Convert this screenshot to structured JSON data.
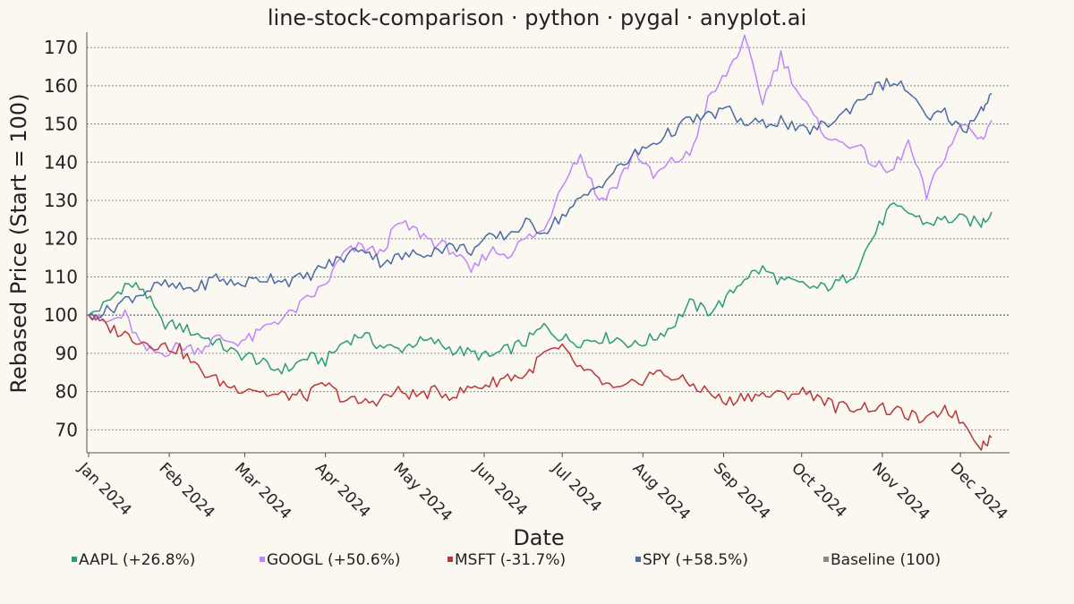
{
  "chart_data": {
    "type": "line",
    "title": "line-stock-comparison · python · pygal · anyplot.ai",
    "xlabel": "Date",
    "ylabel": "Rebased Price (Start = 100)",
    "ylim": [
      64,
      174
    ],
    "yticks": [
      70,
      80,
      90,
      100,
      110,
      120,
      130,
      140,
      150,
      160,
      170
    ],
    "x_ticks": [
      "Jan 2024",
      "Feb 2024",
      "Mar 2024",
      "Apr 2024",
      "May 2024",
      "Jun 2024",
      "Jul 2024",
      "Aug 2024",
      "Sep 2024",
      "Oct 2024",
      "Nov 2024",
      "Dec 2024"
    ],
    "grid": true,
    "legend_position": "bottom",
    "x_start": "2024-01-01",
    "x_end": "2024-12-13",
    "series": [
      {
        "name": "AAPL (+26.8%)",
        "color": "#2a9d78",
        "points": [
          [
            "2024-01-01",
            100
          ],
          [
            "2024-01-08",
            103
          ],
          [
            "2024-01-15",
            108
          ],
          [
            "2024-01-22",
            107
          ],
          [
            "2024-01-29",
            98
          ],
          [
            "2024-02-05",
            97
          ],
          [
            "2024-02-12",
            95
          ],
          [
            "2024-02-19",
            93
          ],
          [
            "2024-02-26",
            90
          ],
          [
            "2024-03-04",
            89
          ],
          [
            "2024-03-11",
            86
          ],
          [
            "2024-03-18",
            86
          ],
          [
            "2024-03-25",
            89
          ],
          [
            "2024-04-01",
            88
          ],
          [
            "2024-04-08",
            93
          ],
          [
            "2024-04-15",
            95
          ],
          [
            "2024-04-22",
            92
          ],
          [
            "2024-04-29",
            91
          ],
          [
            "2024-05-06",
            93
          ],
          [
            "2024-05-13",
            93
          ],
          [
            "2024-05-20",
            91
          ],
          [
            "2024-05-27",
            90
          ],
          [
            "2024-06-03",
            89
          ],
          [
            "2024-06-10",
            91
          ],
          [
            "2024-06-17",
            93
          ],
          [
            "2024-06-24",
            97
          ],
          [
            "2024-07-01",
            94
          ],
          [
            "2024-07-08",
            93
          ],
          [
            "2024-07-15",
            94
          ],
          [
            "2024-07-22",
            94
          ],
          [
            "2024-07-29",
            92
          ],
          [
            "2024-08-05",
            94
          ],
          [
            "2024-08-12",
            97
          ],
          [
            "2024-08-19",
            103
          ],
          [
            "2024-08-26",
            101
          ],
          [
            "2024-09-02",
            104
          ],
          [
            "2024-09-09",
            110
          ],
          [
            "2024-09-16",
            112
          ],
          [
            "2024-09-23",
            109
          ],
          [
            "2024-09-30",
            108
          ],
          [
            "2024-10-07",
            107
          ],
          [
            "2024-10-14",
            108
          ],
          [
            "2024-10-21",
            111
          ],
          [
            "2024-10-28",
            120
          ],
          [
            "2024-11-04",
            128
          ],
          [
            "2024-11-11",
            127
          ],
          [
            "2024-11-18",
            124
          ],
          [
            "2024-11-25",
            125
          ],
          [
            "2024-12-02",
            125
          ],
          [
            "2024-12-09",
            124
          ],
          [
            "2024-12-13",
            127
          ]
        ]
      },
      {
        "name": "GOOGL (+50.6%)",
        "color": "#c084fc",
        "points": [
          [
            "2024-01-01",
            100
          ],
          [
            "2024-01-08",
            98
          ],
          [
            "2024-01-15",
            100
          ],
          [
            "2024-01-22",
            91
          ],
          [
            "2024-01-29",
            90
          ],
          [
            "2024-02-05",
            92
          ],
          [
            "2024-02-12",
            91
          ],
          [
            "2024-02-19",
            94
          ],
          [
            "2024-02-26",
            93
          ],
          [
            "2024-03-04",
            94
          ],
          [
            "2024-03-11",
            98
          ],
          [
            "2024-03-18",
            100
          ],
          [
            "2024-03-25",
            104
          ],
          [
            "2024-04-01",
            108
          ],
          [
            "2024-04-08",
            116
          ],
          [
            "2024-04-15",
            118
          ],
          [
            "2024-04-22",
            116
          ],
          [
            "2024-04-29",
            124
          ],
          [
            "2024-05-06",
            122
          ],
          [
            "2024-05-13",
            119
          ],
          [
            "2024-05-20",
            117
          ],
          [
            "2024-05-27",
            111
          ],
          [
            "2024-06-03",
            117
          ],
          [
            "2024-06-10",
            116
          ],
          [
            "2024-06-17",
            120
          ],
          [
            "2024-06-24",
            122
          ],
          [
            "2024-07-01",
            135
          ],
          [
            "2024-07-08",
            142
          ],
          [
            "2024-07-15",
            130
          ],
          [
            "2024-07-22",
            134
          ],
          [
            "2024-07-29",
            143
          ],
          [
            "2024-08-05",
            136
          ],
          [
            "2024-08-12",
            140
          ],
          [
            "2024-08-19",
            142
          ],
          [
            "2024-08-26",
            156
          ],
          [
            "2024-09-02",
            163
          ],
          [
            "2024-09-09",
            172
          ],
          [
            "2024-09-16",
            156
          ],
          [
            "2024-09-23",
            168
          ],
          [
            "2024-09-30",
            158
          ],
          [
            "2024-10-07",
            150
          ],
          [
            "2024-10-14",
            145
          ],
          [
            "2024-10-21",
            145
          ],
          [
            "2024-10-28",
            140
          ],
          [
            "2024-11-04",
            137
          ],
          [
            "2024-11-11",
            145
          ],
          [
            "2024-11-18",
            131
          ],
          [
            "2024-11-25",
            142
          ],
          [
            "2024-12-02",
            150
          ],
          [
            "2024-12-09",
            146
          ],
          [
            "2024-12-13",
            151
          ]
        ]
      },
      {
        "name": "MSFT (-31.7%)",
        "color": "#b8383a",
        "points": [
          [
            "2024-01-01",
            100
          ],
          [
            "2024-01-08",
            97
          ],
          [
            "2024-01-15",
            95
          ],
          [
            "2024-01-22",
            93
          ],
          [
            "2024-01-29",
            92
          ],
          [
            "2024-02-05",
            91
          ],
          [
            "2024-02-12",
            86
          ],
          [
            "2024-02-19",
            83
          ],
          [
            "2024-02-26",
            81
          ],
          [
            "2024-03-04",
            81
          ],
          [
            "2024-03-11",
            79
          ],
          [
            "2024-03-18",
            79
          ],
          [
            "2024-03-25",
            79
          ],
          [
            "2024-04-01",
            82
          ],
          [
            "2024-04-08",
            78
          ],
          [
            "2024-04-15",
            77
          ],
          [
            "2024-04-22",
            78
          ],
          [
            "2024-04-29",
            80
          ],
          [
            "2024-05-06",
            79
          ],
          [
            "2024-05-13",
            80
          ],
          [
            "2024-05-20",
            79
          ],
          [
            "2024-05-27",
            81
          ],
          [
            "2024-06-03",
            82
          ],
          [
            "2024-06-10",
            84
          ],
          [
            "2024-06-17",
            84
          ],
          [
            "2024-06-24",
            90
          ],
          [
            "2024-07-01",
            91
          ],
          [
            "2024-07-08",
            86
          ],
          [
            "2024-07-15",
            83
          ],
          [
            "2024-07-22",
            80
          ],
          [
            "2024-07-29",
            82
          ],
          [
            "2024-08-05",
            85
          ],
          [
            "2024-08-12",
            84
          ],
          [
            "2024-08-19",
            82
          ],
          [
            "2024-08-26",
            80
          ],
          [
            "2024-09-02",
            77
          ],
          [
            "2024-09-09",
            79
          ],
          [
            "2024-09-16",
            79
          ],
          [
            "2024-09-23",
            79
          ],
          [
            "2024-09-30",
            80
          ],
          [
            "2024-10-07",
            79
          ],
          [
            "2024-10-14",
            76
          ],
          [
            "2024-10-21",
            76
          ],
          [
            "2024-10-28",
            76
          ],
          [
            "2024-11-04",
            75
          ],
          [
            "2024-11-11",
            74
          ],
          [
            "2024-11-18",
            72
          ],
          [
            "2024-11-25",
            76
          ],
          [
            "2024-12-02",
            72
          ],
          [
            "2024-12-09",
            66
          ],
          [
            "2024-12-13",
            68
          ]
        ]
      },
      {
        "name": "SPY (+58.5%)",
        "color": "#4a6aa5",
        "points": [
          [
            "2024-01-01",
            100
          ],
          [
            "2024-01-08",
            101
          ],
          [
            "2024-01-15",
            104
          ],
          [
            "2024-01-22",
            106
          ],
          [
            "2024-01-29",
            108
          ],
          [
            "2024-02-05",
            107
          ],
          [
            "2024-02-12",
            107
          ],
          [
            "2024-02-19",
            110
          ],
          [
            "2024-02-26",
            108
          ],
          [
            "2024-03-04",
            109
          ],
          [
            "2024-03-11",
            110
          ],
          [
            "2024-03-18",
            109
          ],
          [
            "2024-03-25",
            110
          ],
          [
            "2024-04-01",
            113
          ],
          [
            "2024-04-08",
            115
          ],
          [
            "2024-04-15",
            118
          ],
          [
            "2024-04-22",
            114
          ],
          [
            "2024-04-29",
            115
          ],
          [
            "2024-05-06",
            116
          ],
          [
            "2024-05-13",
            117
          ],
          [
            "2024-05-20",
            118
          ],
          [
            "2024-05-27",
            117
          ],
          [
            "2024-06-03",
            120
          ],
          [
            "2024-06-10",
            121
          ],
          [
            "2024-06-17",
            124
          ],
          [
            "2024-06-24",
            122
          ],
          [
            "2024-07-01",
            126
          ],
          [
            "2024-07-08",
            130
          ],
          [
            "2024-07-15",
            134
          ],
          [
            "2024-07-22",
            138
          ],
          [
            "2024-07-29",
            142
          ],
          [
            "2024-08-05",
            145
          ],
          [
            "2024-08-12",
            148
          ],
          [
            "2024-08-19",
            151
          ],
          [
            "2024-08-26",
            152
          ],
          [
            "2024-09-02",
            154
          ],
          [
            "2024-09-09",
            150
          ],
          [
            "2024-09-16",
            150
          ],
          [
            "2024-09-23",
            151
          ],
          [
            "2024-09-30",
            148
          ],
          [
            "2024-10-07",
            149
          ],
          [
            "2024-10-14",
            151
          ],
          [
            "2024-10-21",
            155
          ],
          [
            "2024-10-28",
            159
          ],
          [
            "2024-11-04",
            161
          ],
          [
            "2024-11-11",
            159
          ],
          [
            "2024-11-18",
            151
          ],
          [
            "2024-11-25",
            153
          ],
          [
            "2024-12-02",
            148
          ],
          [
            "2024-12-09",
            154
          ],
          [
            "2024-12-13",
            158
          ]
        ]
      }
    ],
    "baseline": {
      "name": "Baseline (100)",
      "value": 100,
      "color": "#888888"
    }
  }
}
